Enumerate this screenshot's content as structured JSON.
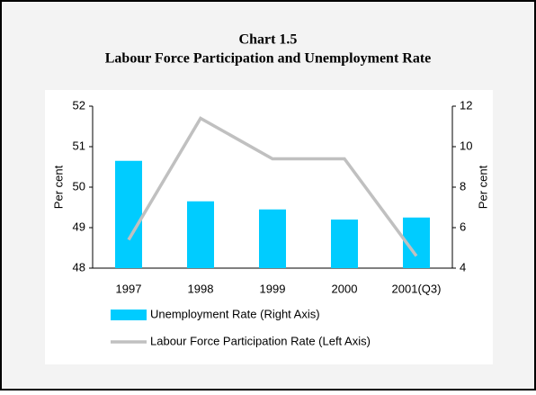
{
  "chart_data": {
    "type": "bar",
    "title": "Chart 1.5",
    "subtitle": "Labour Force Participation and Unemployment Rate",
    "ylabel": "Per cent",
    "y2label": "Per cent",
    "categories": [
      "1997",
      "1998",
      "1999",
      "2000",
      "2001(Q3)"
    ],
    "series": [
      {
        "name": "Unemployment Rate (Right Axis)",
        "type": "bar",
        "axis": "y2",
        "color": "#00ccff",
        "values": [
          9.3,
          7.3,
          6.9,
          6.4,
          6.5
        ]
      },
      {
        "name": "Labour Force Participation Rate (Left Axis)",
        "type": "line",
        "axis": "y",
        "color": "#c0c0c0",
        "values": [
          48.7,
          51.7,
          50.7,
          50.7,
          48.3
        ]
      }
    ],
    "ylim": [
      48,
      52
    ],
    "yticks": [
      48,
      49,
      50,
      51,
      52
    ],
    "y2lim": [
      4,
      12
    ],
    "y2ticks": [
      4,
      6,
      8,
      10,
      12
    ]
  }
}
